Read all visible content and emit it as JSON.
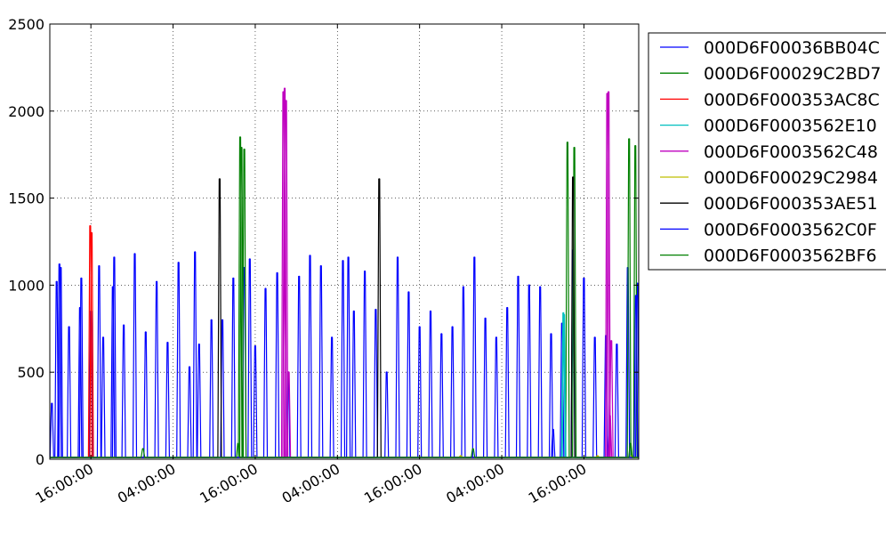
{
  "chart_data": {
    "type": "line",
    "title": "",
    "xlabel": "",
    "ylabel": "",
    "ylim": [
      0,
      2500
    ],
    "xlim": [
      "2014-01-01T10:00:00",
      "2014-01-05T00:00:00"
    ],
    "y_ticks": [
      0,
      500,
      1000,
      1500,
      2000,
      2500
    ],
    "y_tick_labels": [
      "0",
      "500",
      "1000",
      "1500",
      "2000",
      "2500"
    ],
    "x_ticks": [
      "2014-01-01T16:00:00",
      "2014-01-02T04:00:00",
      "2014-01-02T16:00:00",
      "2014-01-03T04:00:00",
      "2014-01-03T16:00:00",
      "2014-01-04T04:00:00",
      "2014-01-04T16:00:00"
    ],
    "x_tick_labels": [
      "16:00:00",
      "04:00:00",
      "16:00:00",
      "04:00:00",
      "16:00:00",
      "04:00:00",
      "16:00:00"
    ],
    "grid": true,
    "legend_position": "right",
    "series": [
      {
        "name": "000D6F00036BB04C",
        "color": "#0000ff",
        "x": [
          "2014-01-01T10:18:00",
          "2014-01-01T11:00:00",
          "2014-01-01T11:36:00",
          "2014-01-01T12:48:00",
          "2014-01-01T14:24:00",
          "2014-01-01T16:00:00",
          "2014-01-01T17:48:00",
          "2014-01-01T19:12:00",
          "2014-01-01T20:48:00",
          "2014-01-01T22:24:00",
          "2014-01-02T00:00:00",
          "2014-01-02T01:36:00",
          "2014-01-02T03:12:00",
          "2014-01-02T04:48:00",
          "2014-01-02T06:24:00",
          "2014-01-02T07:48:00",
          "2014-01-02T09:36:00",
          "2014-01-02T11:12:00",
          "2014-01-02T12:48:00",
          "2014-01-02T14:24:00",
          "2014-01-02T16:00:00",
          "2014-01-02T17:30:00",
          "2014-01-02T19:12:00",
          "2014-01-02T20:48:00",
          "2014-01-02T22:24:00",
          "2014-01-03T00:00:00",
          "2014-01-03T01:36:00",
          "2014-01-03T03:12:00",
          "2014-01-03T04:48:00",
          "2014-01-03T06:24:00",
          "2014-01-03T08:00:00",
          "2014-01-03T09:36:00",
          "2014-01-03T11:12:00",
          "2014-01-03T12:48:00",
          "2014-01-03T14:24:00",
          "2014-01-03T16:00:00",
          "2014-01-03T17:36:00",
          "2014-01-03T19:12:00",
          "2014-01-03T20:48:00",
          "2014-01-03T22:24:00",
          "2014-01-04T00:00:00",
          "2014-01-04T01:36:00",
          "2014-01-04T03:12:00",
          "2014-01-04T04:48:00",
          "2014-01-04T06:24:00",
          "2014-01-04T08:00:00",
          "2014-01-04T09:36:00",
          "2014-01-04T11:12:00",
          "2014-01-04T12:48:00",
          "2014-01-04T14:24:00",
          "2014-01-04T16:00:00",
          "2014-01-04T17:36:00",
          "2014-01-04T19:12:00",
          "2014-01-04T20:48:00",
          "2014-01-04T22:24:00",
          "2014-01-04T23:48:00"
        ],
        "y": [
          320,
          1020,
          1100,
          760,
          870,
          850,
          700,
          990,
          770,
          1180,
          730,
          1020,
          670,
          1130,
          530,
          660,
          800,
          800,
          1040,
          1100,
          650,
          980,
          1070,
          500,
          1050,
          1170,
          1110,
          700,
          1140,
          850,
          1080,
          860,
          500,
          1160,
          960,
          760,
          850,
          720,
          760,
          990,
          1160,
          810,
          700,
          870,
          1050,
          1000,
          990,
          720,
          780,
          1200,
          1040,
          700,
          710,
          660,
          1100,
          1010
        ]
      },
      {
        "name": "000D6F00029C2BD7",
        "color": "#008000",
        "x": [
          "2014-01-02T13:48:00",
          "2014-01-02T14:00:00",
          "2014-01-02T14:24:00",
          "2014-01-04T13:36:00",
          "2014-01-04T14:36:00",
          "2014-01-04T22:36:00",
          "2014-01-04T23:30:00"
        ],
        "y": [
          1850,
          1790,
          1780,
          1820,
          1790,
          1840,
          1800
        ]
      },
      {
        "name": "000D6F000353AC8C",
        "color": "#ff0000",
        "x": [
          "2014-01-01T15:54:00",
          "2014-01-01T16:06:00"
        ],
        "y": [
          1340,
          1300
        ]
      },
      {
        "name": "000D6F0003562E10",
        "color": "#00bfbf",
        "x": [
          "2014-01-04T13:00:00",
          "2014-01-04T13:06:00"
        ],
        "y": [
          840,
          830
        ]
      },
      {
        "name": "000D6F0003562C48",
        "color": "#bf00bf",
        "x": [
          "2014-01-02T20:06:00",
          "2014-01-02T20:18:00",
          "2014-01-02T20:30:00",
          "2014-01-02T20:54:00",
          "2014-01-04T19:24:00",
          "2014-01-04T19:36:00",
          "2014-01-04T19:48:00",
          "2014-01-04T20:00:00"
        ],
        "y": [
          2110,
          2130,
          2060,
          500,
          2100,
          2110,
          250,
          680
        ]
      },
      {
        "name": "000D6F00029C2984",
        "color": "#bfbf00",
        "x": [
          "2014-01-03T22:00:00",
          "2014-01-04T18:00:00",
          "2014-01-04T23:00:00"
        ],
        "y": [
          20,
          20,
          20
        ]
      },
      {
        "name": "000D6F000353AE51",
        "color": "#000000",
        "x": [
          "2014-01-02T10:48:00",
          "2014-01-03T10:06:00",
          "2014-01-04T14:24:00"
        ],
        "y": [
          1610,
          1610,
          1620
        ]
      },
      {
        "name": "000D6F0003562C0F",
        "color": "#0000ff",
        "x": [
          "2014-01-01T11:24:00",
          "2014-01-01T14:36:00",
          "2014-01-01T17:12:00",
          "2014-01-01T19:24:00",
          "2014-01-02T07:12:00",
          "2014-01-02T15:12:00",
          "2014-01-03T05:36:00",
          "2014-01-04T11:30:00",
          "2014-01-04T23:36:00"
        ],
        "y": [
          1120,
          1040,
          1110,
          1160,
          1190,
          1150,
          1160,
          170,
          940
        ]
      },
      {
        "name": "000D6F0003562BF6",
        "color": "#008000",
        "x": [
          "2014-01-01T23:36:00",
          "2014-01-02T13:30:00",
          "2014-01-03T23:48:00",
          "2014-01-04T22:48:00"
        ],
        "y": [
          60,
          90,
          60,
          90
        ]
      }
    ]
  }
}
